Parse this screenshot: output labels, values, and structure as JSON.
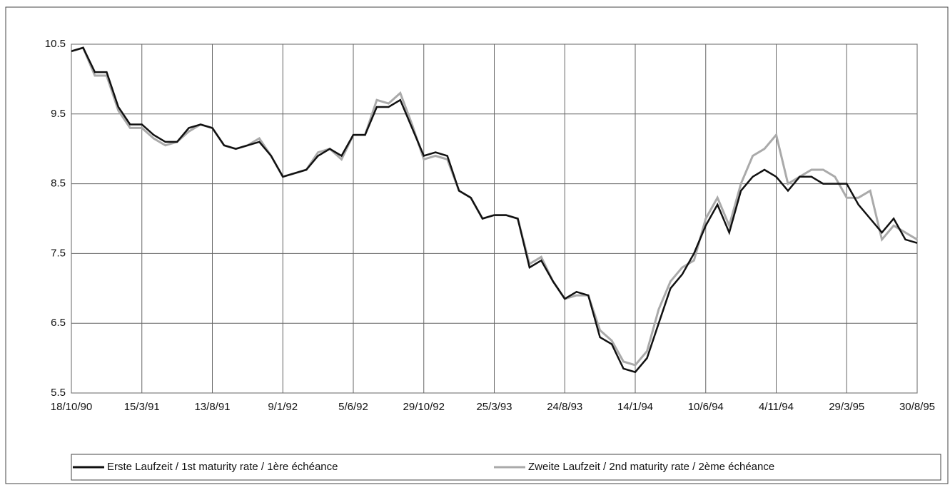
{
  "chart_data": {
    "type": "line",
    "categories": [
      "18/10/90",
      null,
      null,
      null,
      null,
      null,
      "15/3/91",
      null,
      null,
      null,
      null,
      null,
      "13/8/91",
      null,
      null,
      null,
      null,
      null,
      "9/1/92",
      null,
      null,
      null,
      null,
      null,
      "5/6/92",
      null,
      null,
      null,
      null,
      null,
      "29/10/92",
      null,
      null,
      null,
      null,
      null,
      "25/3/93",
      null,
      null,
      null,
      null,
      null,
      "24/8/93",
      null,
      null,
      null,
      null,
      null,
      "14/1/94",
      null,
      null,
      null,
      null,
      null,
      "10/6/94",
      null,
      null,
      null,
      null,
      null,
      "4/11/94",
      null,
      null,
      null,
      null,
      null,
      "29/3/95",
      null,
      null,
      null,
      null,
      null,
      "30/8/95"
    ],
    "series": [
      {
        "name": "Erste Laufzeit / 1st maturity rate / 1ère échéance",
        "color": "#111111",
        "values": [
          10.4,
          10.45,
          10.1,
          10.1,
          9.6,
          9.35,
          9.35,
          9.2,
          9.1,
          9.1,
          9.3,
          9.35,
          9.3,
          9.05,
          9.0,
          9.05,
          9.1,
          8.9,
          8.6,
          8.65,
          8.7,
          8.9,
          9.0,
          8.9,
          9.2,
          9.2,
          9.6,
          9.6,
          9.7,
          9.3,
          8.9,
          8.95,
          8.9,
          8.4,
          8.3,
          8.0,
          8.05,
          8.05,
          8.0,
          7.3,
          7.4,
          7.1,
          6.85,
          6.95,
          6.9,
          6.3,
          6.2,
          5.85,
          5.8,
          6.0,
          6.5,
          7.0,
          7.2,
          7.5,
          7.9,
          8.2,
          7.8,
          8.4,
          8.6,
          8.7,
          8.6,
          8.4,
          8.6,
          8.6,
          8.5,
          8.5,
          8.5,
          8.2,
          8.0,
          7.8,
          8.0,
          7.7,
          7.65
        ]
      },
      {
        "name": "Zweite Laufzeit / 2nd maturity rate / 2ème échéance",
        "color": "#aaaaaa",
        "values": [
          10.4,
          10.45,
          10.05,
          10.05,
          9.55,
          9.3,
          9.3,
          9.15,
          9.05,
          9.1,
          9.25,
          9.35,
          9.3,
          9.05,
          9.0,
          9.05,
          9.15,
          8.9,
          8.6,
          8.65,
          8.7,
          8.95,
          9.0,
          8.85,
          9.2,
          9.2,
          9.7,
          9.65,
          9.8,
          9.35,
          8.85,
          8.9,
          8.85,
          8.4,
          8.3,
          8.0,
          8.05,
          8.05,
          8.0,
          7.35,
          7.45,
          7.1,
          6.85,
          6.9,
          6.9,
          6.4,
          6.25,
          5.95,
          5.9,
          6.1,
          6.7,
          7.1,
          7.3,
          7.4,
          8.0,
          8.3,
          7.9,
          8.5,
          8.9,
          9.0,
          9.2,
          8.5,
          8.6,
          8.7,
          8.7,
          8.6,
          8.3,
          8.3,
          8.4,
          7.7,
          7.9,
          7.8,
          7.7
        ]
      }
    ],
    "ylim": [
      5.5,
      10.5
    ],
    "yticks": [
      {
        "value": 5.5,
        "label": "5.5"
      },
      {
        "value": 6.5,
        "label": "6.5"
      },
      {
        "value": 7.5,
        "label": "7.5"
      },
      {
        "value": 8.5,
        "label": "8.5"
      },
      {
        "value": 9.5,
        "label": "9.5"
      },
      {
        "value": 10.5,
        "label": "10.5"
      }
    ],
    "grid": true,
    "legend": "bottom"
  }
}
